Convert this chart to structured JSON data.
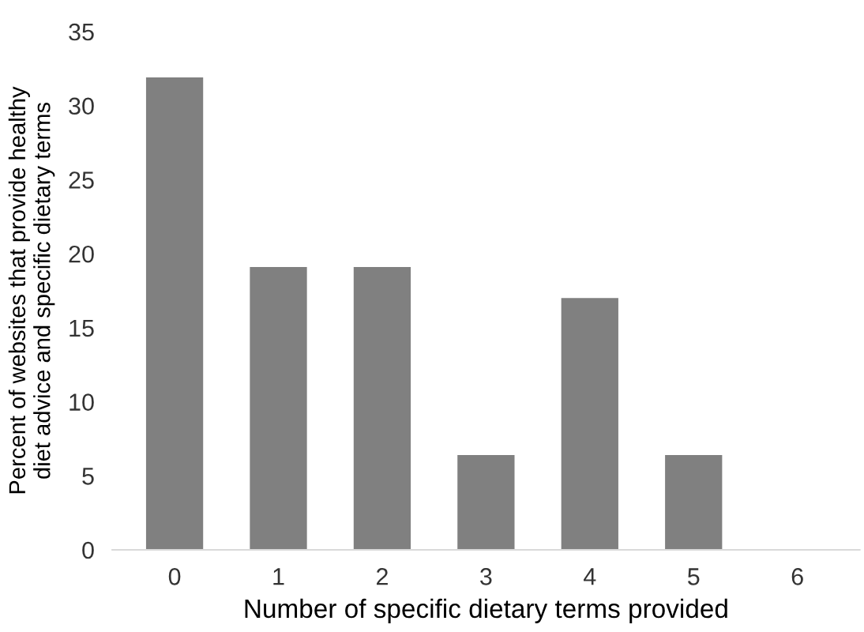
{
  "chart_data": {
    "type": "bar",
    "xlabel": "Number of specific dietary terms provided",
    "ylabel": "Percent of websites that provide healthy diet advice and specific dietary terms",
    "categories": [
      "0",
      "1",
      "2",
      "3",
      "4",
      "5",
      "6"
    ],
    "values": [
      31.9,
      19.1,
      19.1,
      6.4,
      17.0,
      6.4,
      0
    ],
    "color": "#808080",
    "ylim": [
      0,
      35
    ],
    "yticks": [
      0,
      5,
      10,
      15,
      20,
      25,
      30,
      35
    ]
  }
}
